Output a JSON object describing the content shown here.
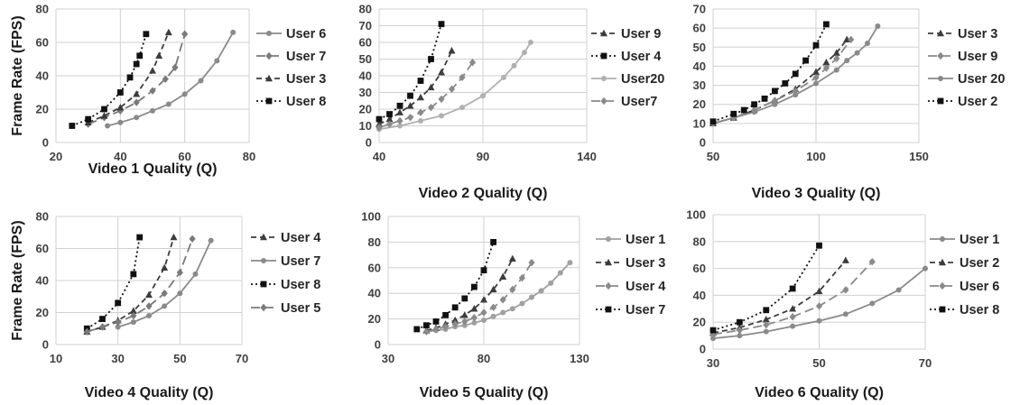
{
  "chart_data": [
    {
      "type": "line",
      "xlabel": "Video 1 Quality (Q)",
      "ylabel": "Frame Rate (FPS)",
      "xlim": [
        20,
        80
      ],
      "ylim": [
        0,
        80
      ],
      "xticks": [
        20,
        40,
        60,
        80
      ],
      "yticks": [
        0,
        20,
        40,
        60,
        80
      ],
      "grid": true,
      "legend": "right",
      "series": [
        {
          "name": "User 6",
          "color": "#8a8a8a",
          "dash": "solid",
          "marker": "circle",
          "x": [
            36,
            40,
            45,
            50,
            55,
            60,
            65,
            70,
            75
          ],
          "y": [
            10,
            12,
            15,
            19,
            23,
            29,
            37,
            49,
            66
          ]
        },
        {
          "name": "User 7",
          "color": "#7a7a7a",
          "dash": "longdash",
          "marker": "diamond",
          "x": [
            30,
            35,
            40,
            45,
            50,
            54,
            57,
            60
          ],
          "y": [
            11,
            15,
            19,
            24,
            31,
            38,
            45,
            65
          ]
        },
        {
          "name": "User 3",
          "color": "#3c3c3c",
          "dash": "dash",
          "marker": "triangle",
          "x": [
            30,
            35,
            40,
            45,
            50,
            52,
            55
          ],
          "y": [
            12,
            16,
            21,
            29,
            43,
            52,
            66
          ]
        },
        {
          "name": "User  8",
          "color": "#111111",
          "dash": "dot",
          "marker": "square",
          "x": [
            25,
            30,
            35,
            40,
            43,
            45,
            46,
            48
          ],
          "y": [
            10,
            14,
            20,
            30,
            39,
            47,
            52,
            65
          ]
        }
      ]
    },
    {
      "type": "line",
      "xlabel": "Video 2 Quality (Q)",
      "ylabel": "",
      "xlim": [
        40,
        140
      ],
      "ylim": [
        0,
        80
      ],
      "xticks": [
        40,
        90,
        140
      ],
      "yticks": [
        0,
        10,
        20,
        30,
        40,
        50,
        60,
        70,
        80
      ],
      "grid": true,
      "legend": "right",
      "series": [
        {
          "name": "User 9",
          "color": "#3c3c3c",
          "dash": "dash",
          "marker": "triangle",
          "x": [
            40,
            45,
            50,
            55,
            60,
            65,
            70,
            75
          ],
          "y": [
            11,
            14,
            18,
            22,
            27,
            33,
            42,
            55
          ]
        },
        {
          "name": "User 4",
          "color": "#111111",
          "dash": "dot",
          "marker": "square",
          "x": [
            40,
            45,
            50,
            55,
            60,
            65,
            70
          ],
          "y": [
            14,
            17,
            22,
            28,
            37,
            50,
            71
          ]
        },
        {
          "name": "User20",
          "color": "#b0b0b0",
          "dash": "solid",
          "marker": "circle",
          "x": [
            40,
            50,
            60,
            70,
            80,
            90,
            100,
            105,
            110,
            113
          ],
          "y": [
            8,
            10,
            13,
            16,
            21,
            28,
            39,
            46,
            54,
            60
          ]
        },
        {
          "name": "User7",
          "color": "#8a8a8a",
          "dash": "longdash",
          "marker": "diamond",
          "x": [
            40,
            45,
            50,
            55,
            60,
            65,
            70,
            75,
            80,
            85
          ],
          "y": [
            9,
            11,
            13,
            15,
            18,
            21,
            26,
            32,
            39,
            48
          ]
        }
      ]
    },
    {
      "type": "line",
      "xlabel": "Video 3 Quality (Q)",
      "ylabel": "",
      "xlim": [
        50,
        150
      ],
      "ylim": [
        0,
        70
      ],
      "xticks": [
        50,
        100,
        150
      ],
      "yticks": [
        0,
        10,
        20,
        30,
        40,
        50,
        60,
        70
      ],
      "grid": true,
      "legend": "right",
      "series": [
        {
          "name": "User 3",
          "color": "#3c3c3c",
          "dash": "dash",
          "marker": "triangle",
          "x": [
            50,
            60,
            70,
            80,
            90,
            100,
            105,
            110,
            115
          ],
          "y": [
            10,
            13,
            17,
            22,
            28,
            37,
            42,
            47,
            54
          ]
        },
        {
          "name": "User 9",
          "color": "#8a8a8a",
          "dash": "longdash",
          "marker": "diamond",
          "x": [
            50,
            60,
            70,
            80,
            90,
            100,
            105,
            110,
            117
          ],
          "y": [
            10,
            13,
            17,
            22,
            27,
            34,
            39,
            44,
            54
          ]
        },
        {
          "name": "User 20",
          "color": "#8a8a8a",
          "dash": "solid",
          "marker": "circle",
          "x": [
            50,
            60,
            70,
            80,
            90,
            100,
            110,
            115,
            120,
            125,
            130
          ],
          "y": [
            10,
            13,
            16,
            20,
            25,
            31,
            38,
            43,
            47,
            52,
            61
          ]
        },
        {
          "name": "User 2",
          "color": "#111111",
          "dash": "dot",
          "marker": "square",
          "x": [
            50,
            60,
            65,
            70,
            75,
            80,
            85,
            90,
            95,
            100,
            105
          ],
          "y": [
            11,
            15,
            17,
            20,
            23,
            27,
            31,
            36,
            43,
            51,
            62
          ]
        }
      ]
    },
    {
      "type": "line",
      "xlabel": "Video 4 Quality (Q)",
      "ylabel": "Frame Rate (FPS)",
      "xlim": [
        10,
        70
      ],
      "ylim": [
        0,
        80
      ],
      "xticks": [
        10,
        30,
        50,
        70
      ],
      "yticks": [
        0,
        20,
        40,
        60,
        80
      ],
      "grid": true,
      "legend": "right",
      "series": [
        {
          "name": "User 4",
          "color": "#3c3c3c",
          "dash": "dash",
          "marker": "triangle",
          "x": [
            20,
            25,
            30,
            35,
            40,
            45,
            48
          ],
          "y": [
            8,
            11,
            15,
            21,
            31,
            48,
            67
          ]
        },
        {
          "name": "User 7",
          "color": "#8a8a8a",
          "dash": "solid",
          "marker": "circle",
          "x": [
            30,
            35,
            40,
            45,
            50,
            55,
            60
          ],
          "y": [
            11,
            14,
            18,
            24,
            32,
            44,
            65
          ]
        },
        {
          "name": "User 8",
          "color": "#111111",
          "dash": "dot",
          "marker": "square",
          "x": [
            20,
            25,
            30,
            35,
            37
          ],
          "y": [
            10,
            16,
            26,
            44,
            67
          ]
        },
        {
          "name": "User 5",
          "color": "#7a7a7a",
          "dash": "longdash",
          "marker": "diamond",
          "x": [
            20,
            25,
            30,
            35,
            40,
            45,
            50,
            54
          ],
          "y": [
            8,
            11,
            14,
            18,
            24,
            32,
            45,
            66
          ]
        }
      ]
    },
    {
      "type": "line",
      "xlabel": "Video 5 Quality (Q)",
      "ylabel": "",
      "xlim": [
        30,
        130
      ],
      "ylim": [
        0,
        100
      ],
      "xticks": [
        30,
        80,
        130
      ],
      "yticks": [
        0,
        20,
        40,
        60,
        80,
        100
      ],
      "grid": true,
      "legend": "right",
      "series": [
        {
          "name": "User 1",
          "color": "#a0a0a0",
          "dash": "solid",
          "marker": "circle",
          "x": [
            50,
            55,
            60,
            65,
            70,
            75,
            80,
            85,
            90,
            95,
            100,
            105,
            110,
            115,
            120,
            125
          ],
          "y": [
            10,
            11,
            12,
            14,
            15,
            17,
            19,
            22,
            25,
            28,
            32,
            37,
            42,
            48,
            56,
            64
          ]
        },
        {
          "name": "User 3",
          "color": "#3c3c3c",
          "dash": "dash",
          "marker": "triangle",
          "x": [
            50,
            55,
            60,
            65,
            70,
            75,
            80,
            85,
            90,
            95
          ],
          "y": [
            11,
            13,
            16,
            19,
            23,
            28,
            35,
            43,
            53,
            67
          ]
        },
        {
          "name": "User 4",
          "color": "#8a8a8a",
          "dash": "longdash",
          "marker": "diamond",
          "x": [
            50,
            55,
            60,
            65,
            70,
            75,
            80,
            85,
            90,
            95,
            100,
            105
          ],
          "y": [
            10,
            12,
            14,
            16,
            18,
            21,
            25,
            29,
            35,
            43,
            52,
            64
          ]
        },
        {
          "name": "User 7",
          "color": "#111111",
          "dash": "dot",
          "marker": "square",
          "x": [
            45,
            50,
            55,
            60,
            65,
            70,
            75,
            80,
            85
          ],
          "y": [
            12,
            15,
            18,
            23,
            29,
            36,
            45,
            58,
            80
          ]
        }
      ]
    },
    {
      "type": "line",
      "xlabel": "Video 6 Quality (Q)",
      "ylabel": "",
      "xlim": [
        30,
        70
      ],
      "ylim": [
        0,
        100
      ],
      "xticks": [
        30,
        50,
        70
      ],
      "yticks": [
        0,
        20,
        40,
        60,
        80,
        100
      ],
      "grid": true,
      "legend": "right",
      "series": [
        {
          "name": "User 1",
          "color": "#8a8a8a",
          "dash": "solid",
          "marker": "circle",
          "x": [
            30,
            35,
            40,
            45,
            50,
            55,
            60,
            65,
            70
          ],
          "y": [
            8,
            10,
            13,
            17,
            21,
            26,
            34,
            44,
            60
          ]
        },
        {
          "name": "User 2",
          "color": "#3c3c3c",
          "dash": "dash",
          "marker": "triangle",
          "x": [
            30,
            35,
            40,
            45,
            50,
            55
          ],
          "y": [
            12,
            16,
            22,
            30,
            43,
            66
          ]
        },
        {
          "name": "User 6",
          "color": "#8a8a8a",
          "dash": "longdash",
          "marker": "diamond",
          "x": [
            30,
            35,
            40,
            45,
            50,
            55,
            60
          ],
          "y": [
            11,
            14,
            18,
            24,
            32,
            44,
            65
          ]
        },
        {
          "name": "User 8",
          "color": "#111111",
          "dash": "dot",
          "marker": "square",
          "x": [
            30,
            35,
            40,
            45,
            50
          ],
          "y": [
            14,
            20,
            29,
            45,
            77
          ]
        }
      ]
    }
  ]
}
